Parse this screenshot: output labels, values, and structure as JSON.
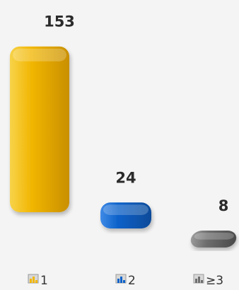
{
  "chart_data": {
    "type": "bar",
    "categories": [
      "1",
      "2",
      "≥3"
    ],
    "values": [
      153,
      24,
      8
    ],
    "data_labels": [
      "153",
      "24",
      "8"
    ],
    "colors": [
      "#f2b705",
      "#0b61c9",
      "#6e6e6e"
    ],
    "legend_icon": "bar-chart-icon",
    "title": "",
    "xlabel": "",
    "ylabel": "",
    "ylim": [
      0,
      160
    ],
    "grid": false,
    "legend": "none"
  }
}
